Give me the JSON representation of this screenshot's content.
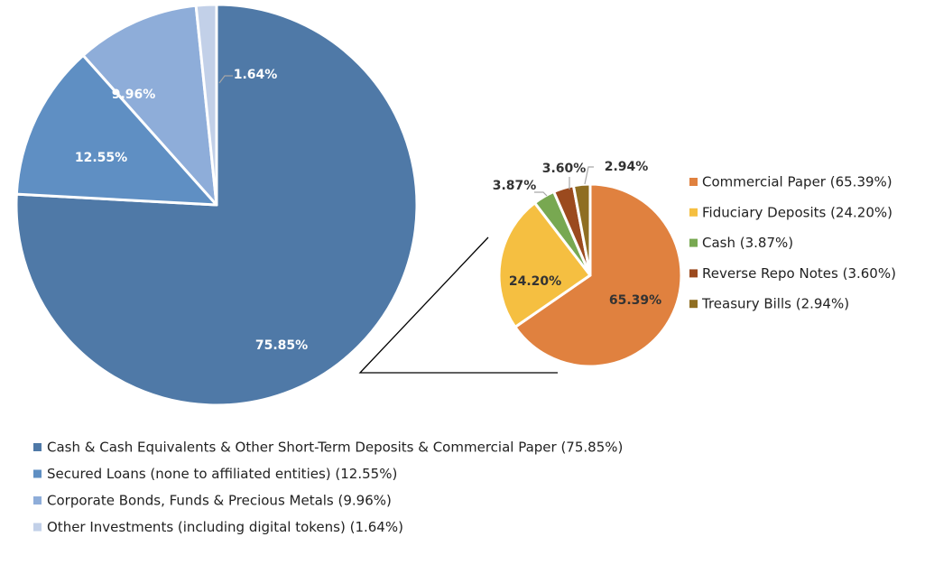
{
  "chart_data": [
    {
      "type": "pie",
      "start": "12 o'clock, clockwise",
      "categories": [
        "Cash & Cash Equivalents & Other Short-Term Deposits & Commercial Paper (75.85%)",
        "Secured Loans (none to affiliated entities) (12.55%)",
        "Corporate Bonds, Funds & Precious Metals (9.96%)",
        "Other Investments (including digital tokens) (1.64%)"
      ],
      "values": [
        75.85,
        12.55,
        9.96,
        1.64
      ],
      "data_labels": [
        "75.85%",
        "12.55%",
        "9.96%",
        "1.64%"
      ],
      "colors": [
        "#4f79a7",
        "#5f8fc3",
        "#8eadd9",
        "#c2d0e8"
      ],
      "label_colors": [
        "#ffffff",
        "#ffffff",
        "#ffffff",
        "#ffffff"
      ],
      "legend_placement": "bottom"
    },
    {
      "type": "pie",
      "start": "12 o'clock, clockwise",
      "breakdown_of": "Cash & Cash Equivalents & Other Short-Term Deposits & Commercial Paper (75.85%)",
      "categories": [
        "Commercial Paper (65.39%)",
        "Fiduciary Deposits (24.20%)",
        "Cash (3.87%)",
        "Reverse Repo Notes (3.60%)",
        "Treasury Bills (2.94%)"
      ],
      "values": [
        65.39,
        24.2,
        3.87,
        3.6,
        2.94
      ],
      "data_labels": [
        "65.39%",
        "24.20%",
        "3.87%",
        "3.60%",
        "2.94%"
      ],
      "colors": [
        "#e0813f",
        "#f5bf41",
        "#78a851",
        "#9b4a1e",
        "#8f6e22"
      ],
      "legend_placement": "right"
    }
  ]
}
